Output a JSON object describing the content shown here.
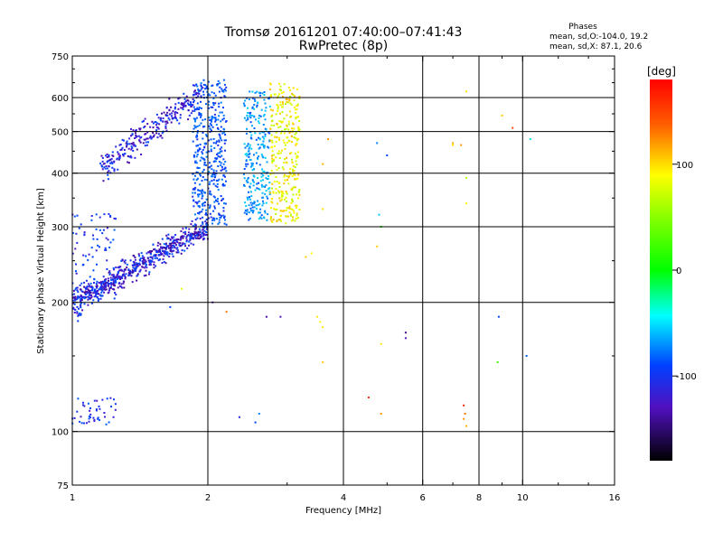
{
  "chart_data": {
    "type": "scatter",
    "title": "Tromsø 20161201 07:40:00–07:41:43",
    "subtitle": "RwPretec (8p)",
    "xlabel": "Frequency [MHz]",
    "ylabel": "Stationary phase Virtual Height [km]",
    "xscale": "log",
    "yscale": "log",
    "xlim": [
      1,
      16
    ],
    "ylim": [
      75,
      750
    ],
    "x_ticks": [
      1,
      2,
      4,
      6,
      8,
      10,
      16
    ],
    "x_tick_labels": [
      "1",
      "2",
      "4",
      "6",
      "8",
      "10",
      "16"
    ],
    "y_ticks": [
      75,
      100,
      200,
      300,
      400,
      500,
      600,
      750
    ],
    "y_tick_labels": [
      "75",
      "100",
      "200",
      "300",
      "400",
      "500",
      "600",
      "750"
    ],
    "x_grid": [
      2,
      4,
      6,
      8,
      10
    ],
    "y_grid": [
      100,
      200,
      300,
      400,
      500,
      600
    ],
    "annotation": {
      "title": "Phases",
      "line1": "mean, sd,O:-104.0, 19.2",
      "line2": "mean, sd,X:  87.1, 20.6"
    },
    "colorbar": {
      "label": "[deg]",
      "range": [
        -180,
        180
      ],
      "ticks": [
        100,
        0,
        -100
      ],
      "tick_labels": [
        "100",
        "0",
        "-100"
      ]
    },
    "clusters": [
      {
        "name": "O-trace lower",
        "f": [
          1.0,
          2.0
        ],
        "h_start": [
          200,
          300
        ],
        "h_spread": 0.05,
        "phase": [
          -140,
          -90
        ],
        "n": 650
      },
      {
        "name": "O-trace lower fringe",
        "f": [
          1.0,
          1.25
        ],
        "h": [
          200,
          330
        ],
        "phase": [
          -120,
          -90
        ],
        "n": 90
      },
      {
        "name": "O-trace upper",
        "f": [
          1.15,
          1.95
        ],
        "h_start": [
          410,
          620
        ],
        "h_spread": 0.06,
        "phase": [
          -135,
          -95
        ],
        "n": 280
      },
      {
        "name": "Column 2.0 MHz",
        "f": [
          1.85,
          2.2
        ],
        "h": [
          300,
          660
        ],
        "phase": [
          -110,
          -80
        ],
        "n": 420
      },
      {
        "name": "Column 2.6 MHz",
        "f": [
          2.4,
          2.75
        ],
        "h": [
          310,
          620
        ],
        "phase": [
          -100,
          -50
        ],
        "n": 260
      },
      {
        "name": "X-trace",
        "f": [
          2.75,
          3.2
        ],
        "h": [
          305,
          650
        ],
        "phase": [
          60,
          130
        ],
        "n": 320
      },
      {
        "name": "Low echoes",
        "f": [
          1.0,
          1.25
        ],
        "h": [
          103,
          120
        ],
        "phase": [
          -120,
          -90
        ],
        "n": 45
      },
      {
        "name": "E region",
        "f": [
          1.0,
          1.05
        ],
        "h": [
          180,
          195
        ],
        "phase": [
          -120,
          -90
        ],
        "n": 15
      }
    ],
    "scattered_points": [
      {
        "f": 3.3,
        "h": 255,
        "phase": 120
      },
      {
        "f": 3.4,
        "h": 260,
        "phase": 100
      },
      {
        "f": 3.5,
        "h": 185,
        "phase": 110
      },
      {
        "f": 3.55,
        "h": 180,
        "phase": 100
      },
      {
        "f": 3.6,
        "h": 175,
        "phase": 110
      },
      {
        "f": 3.6,
        "h": 145,
        "phase": 120
      },
      {
        "f": 3.6,
        "h": 420,
        "phase": 130
      },
      {
        "f": 3.7,
        "h": 480,
        "phase": 140
      },
      {
        "f": 3.6,
        "h": 330,
        "phase": 110
      },
      {
        "f": 2.9,
        "h": 185,
        "phase": -120
      },
      {
        "f": 2.7,
        "h": 185,
        "phase": -130
      },
      {
        "f": 2.55,
        "h": 105,
        "phase": -100
      },
      {
        "f": 2.35,
        "h": 108,
        "phase": -110
      },
      {
        "f": 2.6,
        "h": 110,
        "phase": -80
      },
      {
        "f": 2.2,
        "h": 190,
        "phase": 150
      },
      {
        "f": 2.05,
        "h": 200,
        "phase": -130
      },
      {
        "f": 1.65,
        "h": 195,
        "phase": -100
      },
      {
        "f": 1.75,
        "h": 215,
        "phase": 90
      },
      {
        "f": 4.55,
        "h": 120,
        "phase": 170
      },
      {
        "f": 4.75,
        "h": 270,
        "phase": 120
      },
      {
        "f": 4.85,
        "h": 300,
        "phase": 10
      },
      {
        "f": 4.8,
        "h": 320,
        "phase": -60
      },
      {
        "f": 4.85,
        "h": 160,
        "phase": 110
      },
      {
        "f": 4.85,
        "h": 110,
        "phase": 140
      },
      {
        "f": 4.75,
        "h": 470,
        "phase": -80
      },
      {
        "f": 5.0,
        "h": 440,
        "phase": -100
      },
      {
        "f": 5.5,
        "h": 165,
        "phase": -120
      },
      {
        "f": 5.5,
        "h": 170,
        "phase": -140
      },
      {
        "f": 7.0,
        "h": 465,
        "phase": 110
      },
      {
        "f": 7.0,
        "h": 470,
        "phase": 130
      },
      {
        "f": 7.3,
        "h": 465,
        "phase": 140
      },
      {
        "f": 7.5,
        "h": 620,
        "phase": 110
      },
      {
        "f": 7.5,
        "h": 390,
        "phase": 60
      },
      {
        "f": 7.5,
        "h": 340,
        "phase": 100
      },
      {
        "f": 7.4,
        "h": 115,
        "phase": 170
      },
      {
        "f": 7.45,
        "h": 110,
        "phase": 150
      },
      {
        "f": 7.4,
        "h": 107,
        "phase": 140
      },
      {
        "f": 7.5,
        "h": 103,
        "phase": 130
      },
      {
        "f": 8.85,
        "h": 185,
        "phase": -100
      },
      {
        "f": 8.8,
        "h": 145,
        "phase": 20
      },
      {
        "f": 9.0,
        "h": 545,
        "phase": 120
      },
      {
        "f": 9.5,
        "h": 510,
        "phase": 160
      },
      {
        "f": 10.2,
        "h": 150,
        "phase": -90
      },
      {
        "f": 10.4,
        "h": 480,
        "phase": -40
      }
    ]
  }
}
